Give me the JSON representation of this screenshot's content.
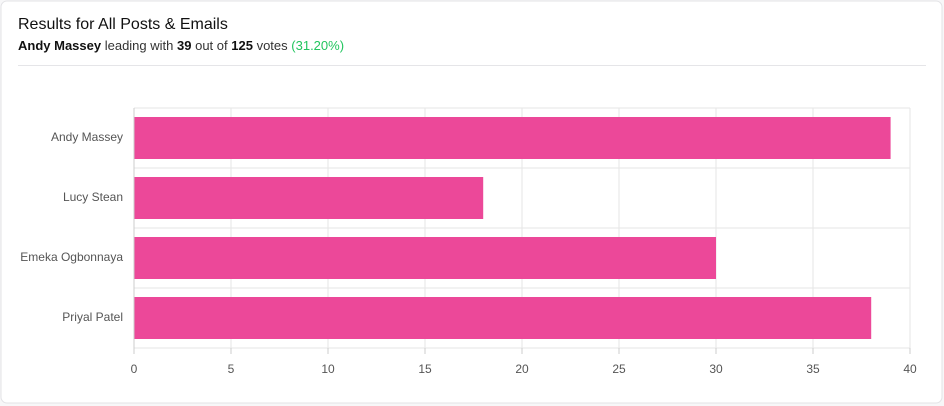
{
  "header": {
    "title": "Results for All Posts & Emails",
    "leader": "Andy Massey",
    "leading_text": "leading with",
    "leader_votes": 39,
    "out_of_text": "out of",
    "total_votes": 125,
    "votes_text": "votes",
    "percent": "(31.20%)"
  },
  "chart_data": {
    "type": "bar",
    "orientation": "horizontal",
    "categories": [
      "Andy Massey",
      "Lucy Stean",
      "Emeka Ogbonnaya",
      "Priyal Patel"
    ],
    "values": [
      39,
      18,
      30,
      38
    ],
    "color": "#ec4899",
    "xlim": [
      0,
      40
    ],
    "xticks": [
      0,
      5,
      10,
      15,
      20,
      25,
      30,
      35,
      40
    ],
    "grid": true
  }
}
